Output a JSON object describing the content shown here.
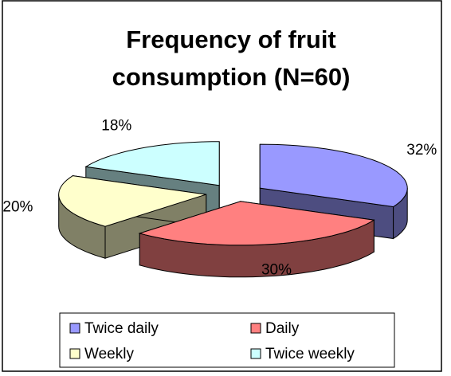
{
  "chart_data": {
    "type": "pie3d",
    "title": "Frequency of fruit consumption (N=60)",
    "title_lines": [
      "Frequency of fruit",
      "consumption (N=60)"
    ],
    "categories": [
      "Twice daily",
      "Daily",
      "Weekly",
      "Twice weekly"
    ],
    "values": [
      32,
      30,
      20,
      18
    ],
    "value_labels": [
      "32%",
      "30%",
      "20%",
      "18%"
    ],
    "colors": [
      "#9999ff",
      "#ff8080",
      "#ffffcc",
      "#ccffff"
    ],
    "legend": "bottom"
  }
}
